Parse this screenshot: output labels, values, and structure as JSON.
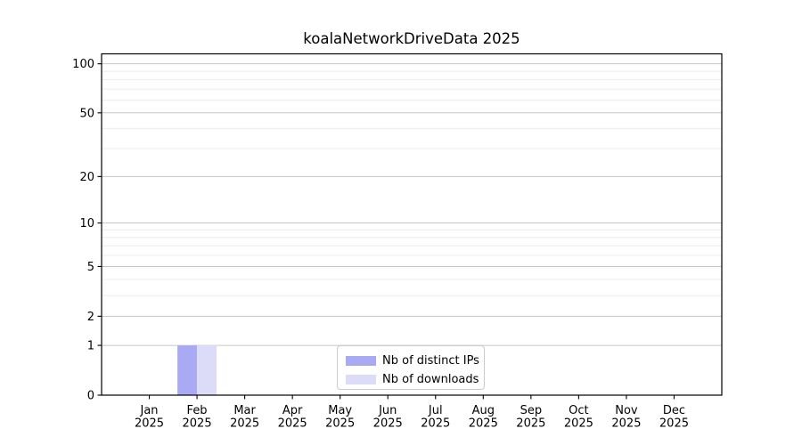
{
  "window": {
    "background": "#ffffff"
  },
  "chart_data": {
    "type": "bar",
    "title": "koalaNetworkDriveData 2025",
    "categories": [
      "Jan",
      "Feb",
      "Mar",
      "Apr",
      "May",
      "Jun",
      "Jul",
      "Aug",
      "Sep",
      "Oct",
      "Nov",
      "Dec"
    ],
    "x_tick_year": "2025",
    "series": [
      {
        "name": "Nb of distinct IPs",
        "color": "#aaaaf4",
        "values": [
          0,
          1,
          0,
          0,
          0,
          0,
          0,
          0,
          0,
          0,
          0,
          0
        ]
      },
      {
        "name": "Nb of downloads",
        "color": "#dcdcf8",
        "values": [
          0,
          1,
          0,
          0,
          0,
          0,
          0,
          0,
          0,
          0,
          0,
          0
        ]
      }
    ],
    "xlabel": "",
    "ylabel": "",
    "yscale": "log1p",
    "ylim": [
      0,
      115
    ],
    "y_ticks_major": [
      0,
      1,
      2,
      5,
      10,
      20,
      50,
      100
    ],
    "y_ticks_minor": [
      3,
      4,
      6,
      7,
      8,
      9,
      30,
      40,
      60,
      70,
      80,
      90
    ],
    "grid": "horizontal",
    "legend_position": "lower center",
    "axis_color": "#000000",
    "text_color": "#000000",
    "grid_major_color": "#c6c6c6",
    "grid_minor_color": "#ececec"
  }
}
